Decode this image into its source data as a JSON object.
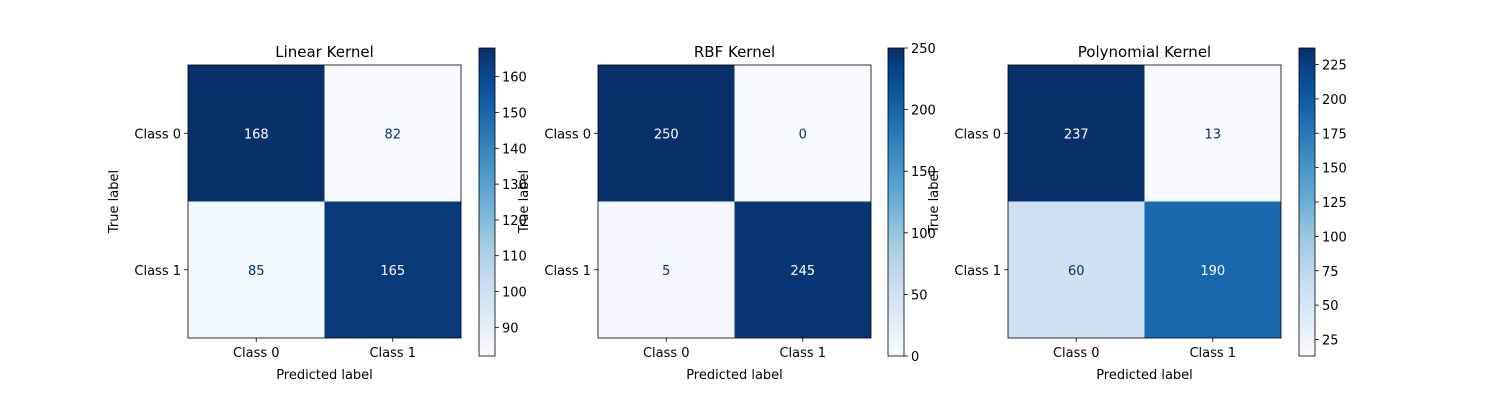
{
  "chart_data": [
    {
      "type": "heatmap",
      "title": "Linear Kernel",
      "xlabel": "Predicted label",
      "ylabel": "True label",
      "x_categories": [
        "Class 0",
        "Class 1"
      ],
      "y_categories": [
        "Class 0",
        "Class 1"
      ],
      "matrix": [
        [
          168,
          82
        ],
        [
          85,
          165
        ]
      ],
      "colormap": "Blues",
      "colorbar": {
        "min": 82,
        "max": 168,
        "ticks": [
          90,
          100,
          110,
          120,
          130,
          140,
          150,
          160
        ]
      }
    },
    {
      "type": "heatmap",
      "title": "RBF Kernel",
      "xlabel": "Predicted label",
      "ylabel": "True label",
      "x_categories": [
        "Class 0",
        "Class 1"
      ],
      "y_categories": [
        "Class 0",
        "Class 1"
      ],
      "matrix": [
        [
          250,
          0
        ],
        [
          5,
          245
        ]
      ],
      "colormap": "Blues",
      "colorbar": {
        "min": 0,
        "max": 250,
        "ticks": [
          0,
          50,
          100,
          150,
          200,
          250
        ]
      }
    },
    {
      "type": "heatmap",
      "title": "Polynomial Kernel",
      "xlabel": "Predicted label",
      "ylabel": "True label",
      "x_categories": [
        "Class 0",
        "Class 1"
      ],
      "y_categories": [
        "Class 0",
        "Class 1"
      ],
      "matrix": [
        [
          237,
          13
        ],
        [
          60,
          190
        ]
      ],
      "colormap": "Blues",
      "colorbar": {
        "min": 13,
        "max": 237,
        "ticks": [
          25,
          50,
          75,
          100,
          125,
          150,
          175,
          200,
          225
        ]
      }
    }
  ]
}
